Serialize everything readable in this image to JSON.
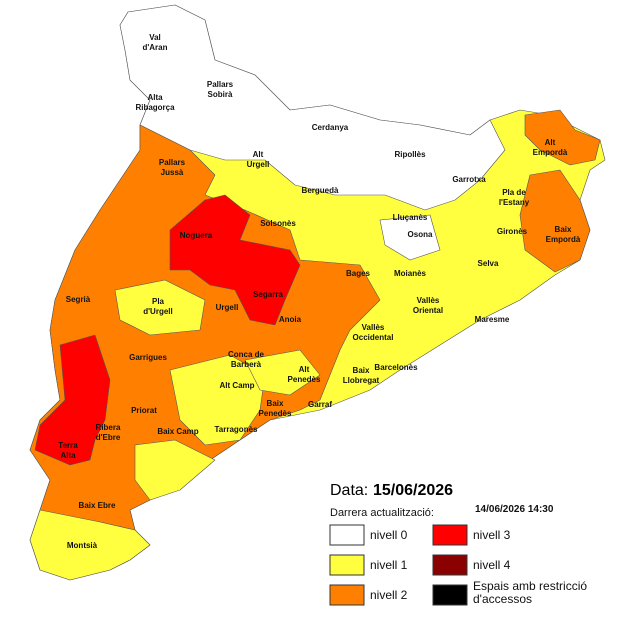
{
  "header": {
    "date_label": "Data:",
    "date": "15/06/2026",
    "update_label": "Darrera actualització:",
    "update": "14/06/2026  14:30"
  },
  "legend": [
    {
      "label": [
        "nivell 0"
      ],
      "color": "#ffffff"
    },
    {
      "label": [
        "nivell 1"
      ],
      "color": "#ffff40"
    },
    {
      "label": [
        "nivell 2"
      ],
      "color": "#ff8000"
    },
    {
      "label": [
        "nivell 3"
      ],
      "color": "#ff0000"
    },
    {
      "label": [
        "nivell 4"
      ],
      "color": "#8b0000"
    },
    {
      "label": [
        "Espais amb restricció",
        "d'accessos"
      ],
      "color": "#000000"
    }
  ],
  "labels": [
    [
      "Val",
      "d'Aran"
    ],
    [
      "Pallars",
      "Sobirà"
    ],
    [
      "Alta",
      "Ribagorça"
    ],
    [
      "Cerdanya"
    ],
    [
      "Ripollès"
    ],
    [
      "Alt",
      "Empordà"
    ],
    [
      "Pallars",
      "Jussà"
    ],
    [
      "Alt",
      "Urgell"
    ],
    [
      "Berguedà"
    ],
    [
      "Garrotxa"
    ],
    [
      "Pla de",
      "l'Estany"
    ],
    [
      "Solsonès"
    ],
    [
      "Lluçanès"
    ],
    [
      "Noguera"
    ],
    [
      "Osona"
    ],
    [
      "Gironès"
    ],
    [
      "Baix",
      "Empordà"
    ],
    [
      "Bages"
    ],
    [
      "Moianès"
    ],
    [
      "Selva"
    ],
    [
      "Segarra"
    ],
    [
      "Pla",
      "d'Urgell"
    ],
    [
      "Urgell"
    ],
    [
      "Vallès",
      "Oriental"
    ],
    [
      "Segrià"
    ],
    [
      "Anoia"
    ],
    [
      "Maresme"
    ],
    [
      "Vallès",
      "Occidental"
    ],
    [
      "Garrigues"
    ],
    [
      "Conca de",
      "Barberà"
    ],
    [
      "Barcelonès"
    ],
    [
      "Alt Camp"
    ],
    [
      "Alt",
      "Penedès"
    ],
    [
      "Baix",
      "Llobregat"
    ],
    [
      "Priorat"
    ],
    [
      "Baix",
      "Penedès"
    ],
    [
      "Garraf"
    ],
    [
      "Ribera",
      "d'Ebre"
    ],
    [
      "Baix Camp"
    ],
    [
      "Tarragonès"
    ],
    [
      "Terra",
      "Alta"
    ],
    [
      "Baix Ebre"
    ],
    [
      "Montsià"
    ]
  ]
}
